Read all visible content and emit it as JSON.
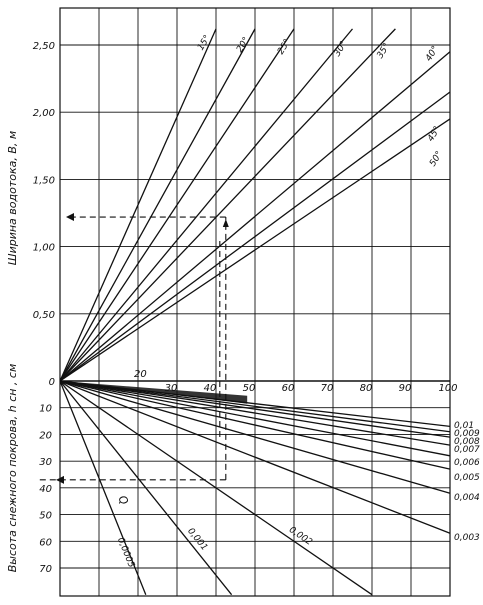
{
  "chart_data": {
    "type": "line",
    "x": {
      "ticks": [
        20,
        30,
        40,
        50,
        60,
        70,
        80,
        90,
        100
      ],
      "range": [
        0,
        100
      ]
    },
    "upper": {
      "ylabel": "Ширина водотока, В, м",
      "yticks": [
        "2,50",
        "2,00",
        "1,50",
        "1,00",
        "0,50",
        "0"
      ],
      "ylim": [
        0,
        2.7
      ],
      "lines": [
        {
          "label": "15°",
          "y_at_x": {
            "x": 40,
            "y": 2.62
          }
        },
        {
          "label": "20°",
          "y_at_x": {
            "x": 50,
            "y": 2.62
          }
        },
        {
          "label": "25°",
          "y_at_x": {
            "x": 60,
            "y": 2.62
          }
        },
        {
          "label": "30°",
          "y_at_x": {
            "x": 75,
            "y": 2.62
          }
        },
        {
          "label": "35°",
          "y_at_x": {
            "x": 86,
            "y": 2.62
          }
        },
        {
          "label": "40°",
          "y_at_x": {
            "x": 100,
            "y": 2.45
          }
        },
        {
          "label": "45°",
          "y_at_x": {
            "x": 100,
            "y": 2.15
          }
        },
        {
          "label": "50°",
          "y_at_x": {
            "x": 100,
            "y": 1.95
          }
        }
      ]
    },
    "lower": {
      "ylabel": "Высота снежного покрова, h  сн , см",
      "yticks": [
        "10",
        "20",
        "30",
        "40",
        "50",
        "60",
        "70"
      ],
      "ylim": [
        0,
        80
      ],
      "lines": [
        {
          "label": "0,01",
          "y_at_100": 17
        },
        {
          "label": "0,009",
          "y_at_100": 19
        },
        {
          "label": "0,008",
          "y_at_100": 21
        },
        {
          "label": "0,007",
          "y_at_100": 24
        },
        {
          "label": "0,006",
          "y_at_100": 28
        },
        {
          "label": "0,005",
          "y_at_100": 33
        },
        {
          "label": "0,004",
          "y_at_100": 42
        },
        {
          "label": "0,003",
          "y_at_100": 57
        },
        {
          "label": "0,002",
          "y_at_x": {
            "x": 80,
            "y": 80
          }
        },
        {
          "label": "0,001",
          "y_at_x": {
            "x": 44,
            "y": 80
          }
        },
        {
          "label": "0,0005",
          "y_at_x": {
            "x": 22,
            "y": 80
          }
        }
      ],
      "param_label": "Q"
    },
    "example": {
      "x": 42,
      "y_upper": 1.22,
      "y_lower": 37
    },
    "grid": true
  },
  "colors": {
    "ink": "#111111",
    "paper": "#ffffff"
  }
}
